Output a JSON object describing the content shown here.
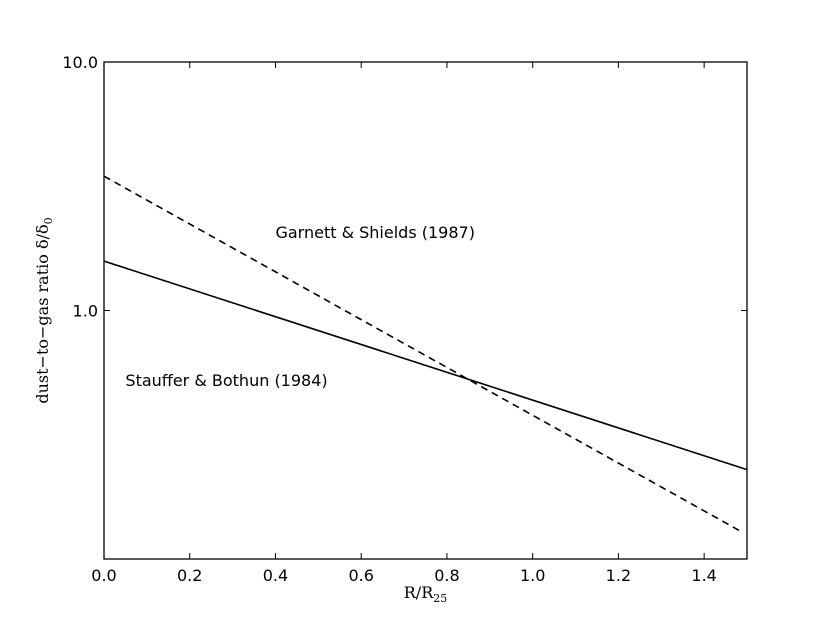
{
  "chart_data": {
    "type": "line",
    "xlabel": {
      "base": "R/R",
      "sub": "25"
    },
    "ylabel": {
      "base": "dust−to−gas ratio δ/δ",
      "sub": "0"
    },
    "xlim": [
      0.0,
      1.5
    ],
    "ylim": [
      0.1,
      10.0
    ],
    "yscale": "log",
    "x_ticks": [
      {
        "value": 0.0,
        "label": "0.0"
      },
      {
        "value": 0.2,
        "label": "0.2"
      },
      {
        "value": 0.4,
        "label": "0.4"
      },
      {
        "value": 0.6,
        "label": "0.6"
      },
      {
        "value": 0.8,
        "label": "0.8"
      },
      {
        "value": 1.0,
        "label": "1.0"
      },
      {
        "value": 1.2,
        "label": "1.2"
      },
      {
        "value": 1.4,
        "label": "1.4"
      }
    ],
    "y_ticks": [
      {
        "value": 1.0,
        "label": "1.0"
      },
      {
        "value": 10.0,
        "label": "10.0"
      }
    ],
    "series": [
      {
        "x": [
          0.0,
          1.5
        ],
        "y": [
          1.58,
          0.229
        ],
        "style": "solid",
        "color": "#000000"
      },
      {
        "x": [
          0.0,
          1.49
        ],
        "y": [
          3.47,
          0.128
        ],
        "style": "dashed",
        "color": "#000000"
      }
    ],
    "annotations": [
      {
        "text": "Garnett & Shields (1987)",
        "x": 0.4,
        "y": 2.05
      },
      {
        "text": "Stauffer & Bothun (1984)",
        "x": 0.05,
        "y": 0.52
      }
    ],
    "grid": false,
    "legend": "none"
  }
}
